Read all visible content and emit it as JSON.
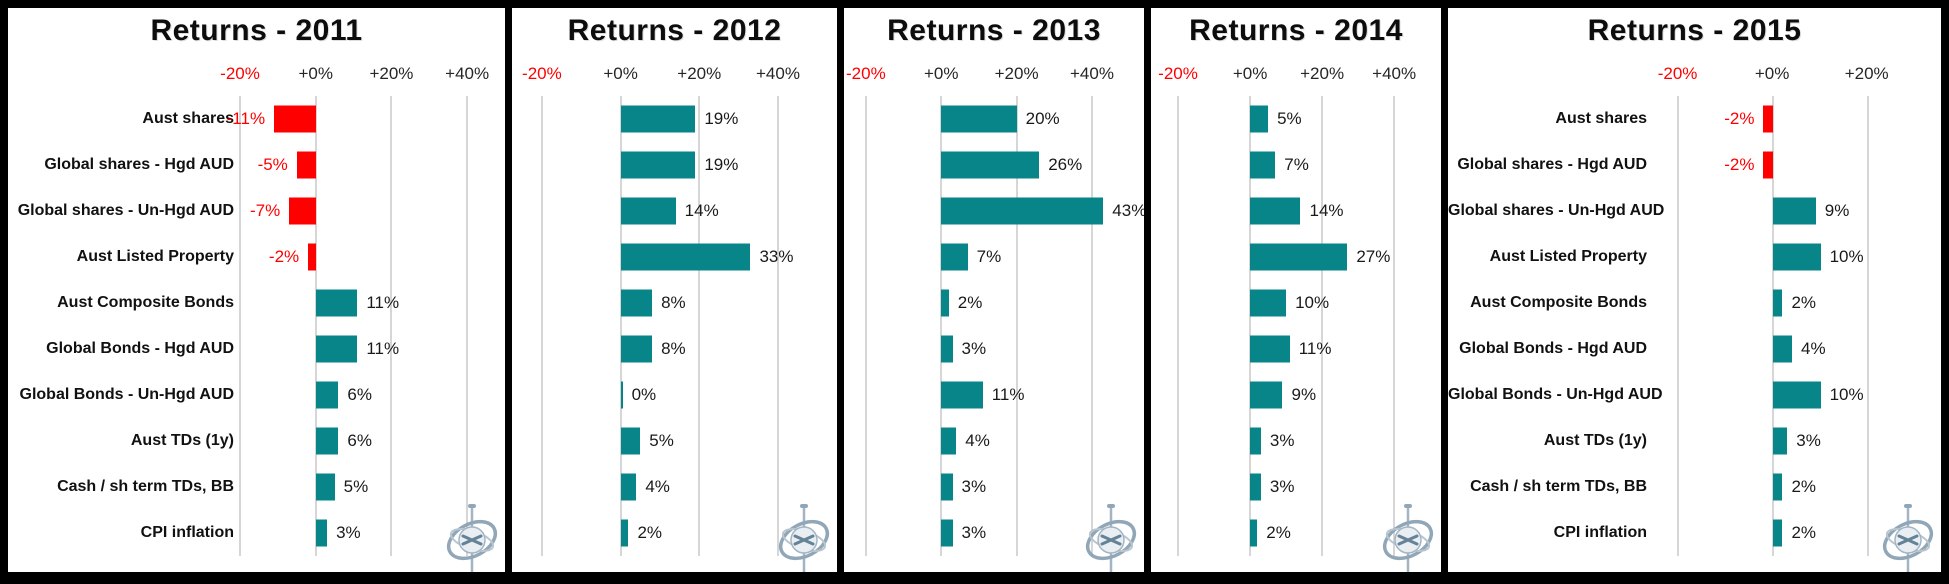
{
  "page": {
    "background": "#000000",
    "description_colors": {
      "positive_bar": "#078589",
      "negative_bar": "#ff0000",
      "negative_text": "#ff0000",
      "gridline": "#d6d6d6",
      "tick_text": "#262626"
    }
  },
  "watermark": {
    "icon": "gyroscope-logo"
  },
  "chart_data": [
    {
      "type": "bar",
      "orientation": "horizontal",
      "title": "Returns - 2011",
      "categories": [
        "Aust shares",
        "Global shares - Hgd AUD",
        "Global shares - Un-Hgd AUD",
        "Aust Listed Property",
        "Aust Composite Bonds",
        "Global Bonds - Hgd AUD",
        "Global Bonds - Un-Hgd AUD",
        "Aust TDs (1y)",
        "Cash / sh term TDs, BB",
        "CPI inflation"
      ],
      "values": [
        -11,
        -5,
        -7,
        -2,
        11,
        11,
        6,
        6,
        5,
        3
      ],
      "data_labels": [
        "-11%",
        "-5%",
        "-7%",
        "-2%",
        "11%",
        "11%",
        "6%",
        "6%",
        "5%",
        "3%"
      ],
      "xticks": [
        {
          "label": "-20%",
          "value": -20,
          "negative": true
        },
        {
          "label": "+0%",
          "value": 0,
          "negative": false
        },
        {
          "label": "+20%",
          "value": 20,
          "negative": false
        },
        {
          "label": "+40%",
          "value": 40,
          "negative": false
        }
      ],
      "xlim": [
        -20,
        50
      ],
      "grid": true,
      "legend": false,
      "show_category_labels": true
    },
    {
      "type": "bar",
      "orientation": "horizontal",
      "title": "Returns - 2012",
      "categories": [
        "Aust shares",
        "Global shares - Hgd AUD",
        "Global shares - Un-Hgd AUD",
        "Aust Listed Property",
        "Aust Composite Bonds",
        "Global Bonds - Hgd AUD",
        "Global Bonds - Un-Hgd AUD",
        "Aust TDs (1y)",
        "Cash / sh term TDs, BB",
        "CPI inflation"
      ],
      "values": [
        19,
        19,
        14,
        33,
        8,
        8,
        0,
        5,
        4,
        2
      ],
      "data_labels": [
        "19%",
        "19%",
        "14%",
        "33%",
        "8%",
        "8%",
        "0%",
        "5%",
        "4%",
        "2%"
      ],
      "xticks": [
        {
          "label": "-20%",
          "value": -20,
          "negative": true
        },
        {
          "label": "+0%",
          "value": 0,
          "negative": false
        },
        {
          "label": "+20%",
          "value": 20,
          "negative": false
        },
        {
          "label": "+40%",
          "value": 40,
          "negative": false
        }
      ],
      "xlim": [
        -27.6,
        55
      ],
      "grid": true,
      "legend": false,
      "show_category_labels": false
    },
    {
      "type": "bar",
      "orientation": "horizontal",
      "title": "Returns - 2013",
      "categories": [
        "Aust shares",
        "Global shares - Hgd AUD",
        "Global shares - Un-Hgd AUD",
        "Aust Listed Property",
        "Aust Composite Bonds",
        "Global Bonds - Hgd AUD",
        "Global Bonds - Un-Hgd AUD",
        "Aust TDs (1y)",
        "Cash / sh term TDs, BB",
        "CPI inflation"
      ],
      "values": [
        20,
        26,
        43,
        7,
        2,
        3,
        11,
        4,
        3,
        3
      ],
      "data_labels": [
        "20%",
        "26%",
        "43%",
        "7%",
        "2%",
        "3%",
        "11%",
        "4%",
        "3%",
        "3%"
      ],
      "xticks": [
        {
          "label": "-20%",
          "value": -20,
          "negative": true
        },
        {
          "label": "+0%",
          "value": 0,
          "negative": false
        },
        {
          "label": "+20%",
          "value": 20,
          "negative": false
        },
        {
          "label": "+40%",
          "value": 40,
          "negative": false
        }
      ],
      "xlim": [
        -25.8,
        53.8
      ],
      "grid": true,
      "legend": false,
      "show_category_labels": false
    },
    {
      "type": "bar",
      "orientation": "horizontal",
      "title": "Returns - 2014",
      "categories": [
        "Aust shares",
        "Global shares - Hgd AUD",
        "Global shares - Un-Hgd AUD",
        "Aust Listed Property",
        "Aust Composite Bonds",
        "Global Bonds - Hgd AUD",
        "Global Bonds - Un-Hgd AUD",
        "Aust TDs (1y)",
        "Cash / sh term TDs, BB",
        "CPI inflation"
      ],
      "values": [
        5,
        7,
        14,
        27,
        10,
        11,
        9,
        3,
        3,
        2
      ],
      "data_labels": [
        "5%",
        "7%",
        "14%",
        "27%",
        "10%",
        "11%",
        "9%",
        "3%",
        "3%",
        "2%"
      ],
      "xticks": [
        {
          "label": "-20%",
          "value": -20,
          "negative": true
        },
        {
          "label": "+0%",
          "value": 0,
          "negative": false
        },
        {
          "label": "+20%",
          "value": 20,
          "negative": false
        },
        {
          "label": "+40%",
          "value": 40,
          "negative": false
        }
      ],
      "xlim": [
        -27.5,
        53
      ],
      "grid": true,
      "legend": false,
      "show_category_labels": false
    },
    {
      "type": "bar",
      "orientation": "horizontal",
      "title": "Returns - 2015",
      "categories": [
        "Aust shares",
        "Global shares - Hgd AUD",
        "Global shares - Un-Hgd AUD",
        "Aust Listed Property",
        "Aust Composite Bonds",
        "Global Bonds - Hgd AUD",
        "Global Bonds - Un-Hgd AUD",
        "Aust TDs (1y)",
        "Cash / sh term TDs, BB",
        "CPI inflation"
      ],
      "values": [
        -2,
        -2,
        9,
        10,
        2,
        4,
        10,
        3,
        2,
        2
      ],
      "data_labels": [
        "-2%",
        "-2%",
        "9%",
        "10%",
        "2%",
        "4%",
        "10%",
        "3%",
        "2%",
        "2%"
      ],
      "xticks": [
        {
          "label": "-20%",
          "value": -20,
          "negative": true
        },
        {
          "label": "+0%",
          "value": 0,
          "negative": false
        },
        {
          "label": "+20%",
          "value": 20,
          "negative": false
        }
      ],
      "xlim": [
        -25.2,
        35.3
      ],
      "grid": true,
      "legend": false,
      "show_category_labels": true
    }
  ]
}
